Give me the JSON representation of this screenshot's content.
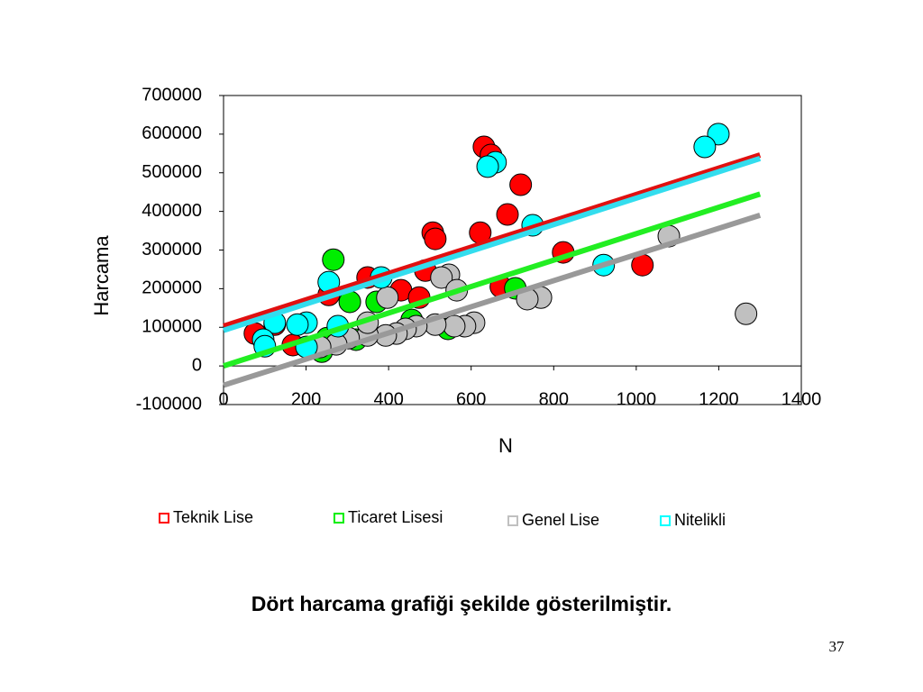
{
  "chart_data": {
    "type": "scatter",
    "x_label": "N",
    "y_label": "Harcama",
    "xlim": [
      0,
      1400
    ],
    "xticks": [
      0,
      200,
      400,
      600,
      800,
      1000,
      1200,
      1400
    ],
    "ylim": [
      -100000,
      700000
    ],
    "yticks": [
      -100000,
      0,
      100000,
      200000,
      300000,
      400000,
      500000,
      600000,
      700000
    ],
    "series": [
      {
        "name": "Teknik Lise",
        "color": "#ff0000",
        "trend_color": "#e01010",
        "x": [
          631,
          648,
          720,
          688,
          622,
          507,
          513,
          489,
          349,
          430,
          474,
          672,
          823,
          1015,
          255,
          168,
          124,
          76
        ],
        "values": [
          567000,
          546000,
          469000,
          392000,
          345000,
          345000,
          329000,
          247000,
          229000,
          196000,
          177000,
          205000,
          294000,
          261000,
          184000,
          54000,
          107000,
          84000
        ],
        "trend_x": [
          0,
          1300
        ],
        "trend_values": [
          103000,
          546000
        ]
      },
      {
        "name": "Ticaret Lisesi",
        "color": "#00ee00",
        "trend_color": "#22ee22",
        "x": [
          266,
          306,
          371,
          456,
          544,
          707,
          321,
          238,
          201,
          251
        ],
        "values": [
          275000,
          166000,
          166000,
          119000,
          96000,
          201000,
          68000,
          37000,
          49000,
          72000
        ],
        "trend_x": [
          0,
          1300
        ],
        "trend_values": [
          0,
          445000
        ]
      },
      {
        "name": "Genel Lise",
        "color": "#c0c0c0",
        "trend_color": "#999999",
        "x": [
          1266,
          1079,
          769,
          736,
          546,
          528,
          565,
          397,
          607,
          585,
          559,
          513,
          467,
          441,
          419,
          393,
          349,
          349,
          303,
          273,
          234
        ],
        "values": [
          135000,
          336000,
          177000,
          173000,
          236000,
          229000,
          196000,
          177000,
          112000,
          103000,
          103000,
          107000,
          103000,
          96000,
          84000,
          79000,
          79000,
          112000,
          72000,
          56000,
          49000
        ],
        "trend_x": [
          0,
          1300
        ],
        "trend_values": [
          -50000,
          390000
        ]
      },
      {
        "name": "Nitelikli",
        "color": "#00ffff",
        "trend_color": "#33ddee",
        "x": [
          1199,
          1166,
          659,
          640,
          749,
          921,
          382,
          255,
          277,
          201,
          179,
          124,
          96,
          100,
          201
        ],
        "values": [
          600000,
          567000,
          527000,
          516000,
          364000,
          261000,
          229000,
          217000,
          103000,
          112000,
          107000,
          112000,
          68000,
          51000,
          49000
        ],
        "trend_x": [
          0,
          1300
        ],
        "trend_values": [
          92000,
          537000
        ]
      }
    ]
  },
  "caption": "Dört harcama grafiği şekilde gösterilmiştir.",
  "page_number": "37"
}
